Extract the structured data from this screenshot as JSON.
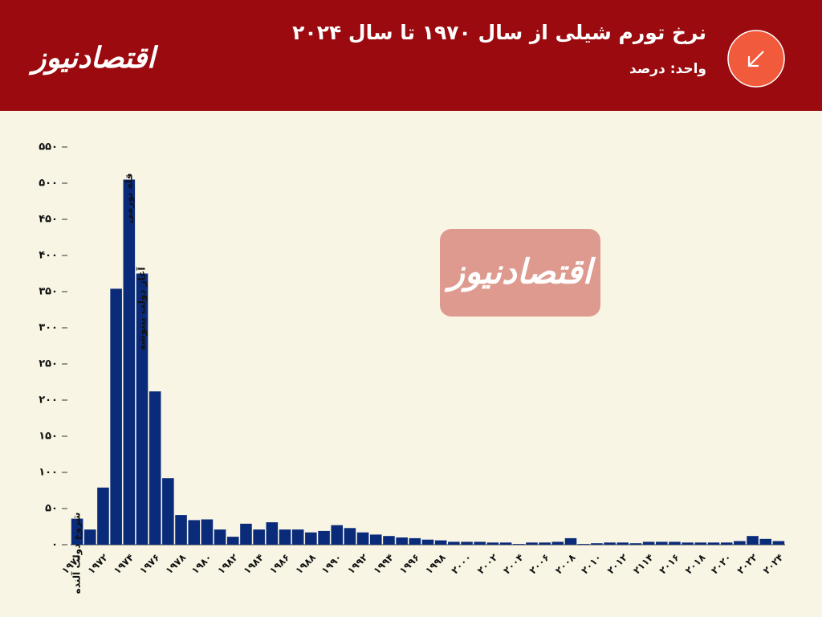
{
  "brand": "اقتصادنیوز",
  "chart_data": {
    "type": "bar",
    "title": "نرخ تورم شیلی از سال ۱۹۷۰ تا سال ۲۰۲۴",
    "subtitle": "واحد: درصد",
    "color": "#0a2a7a",
    "categories": [
      "۱۹۷۰",
      null,
      "۱۹۷۲",
      null,
      "۱۹۷۴",
      null,
      "۱۹۷۶",
      null,
      "۱۹۷۸",
      null,
      "۱۹۸۰",
      null,
      "۱۹۸۲",
      null,
      "۱۹۸۴",
      null,
      "۱۹۸۶",
      null,
      "۱۹۸۸",
      null,
      "۱۹۹۰",
      null,
      "۱۹۹۲",
      null,
      "۱۹۹۴",
      null,
      "۱۹۹۶",
      null,
      "۱۹۹۸",
      null,
      "۲۰۰۰",
      null,
      "۲۰۰۲",
      null,
      "۲۰۰۴",
      null,
      "۲۰۰۶",
      null,
      "۲۰۰۸",
      null,
      "۲۰۱۰",
      null,
      "۲۰۱۲",
      null,
      "۲۱۱۴",
      null,
      "۲۰۱۶",
      null,
      "۲۰۱۸",
      null,
      "۲۰۲۰",
      null,
      "۲۰۲۲",
      null,
      "۲۰۲۴"
    ],
    "values": [
      36,
      21,
      79,
      354,
      505,
      375,
      212,
      92,
      41,
      34,
      35,
      21,
      11,
      29,
      21,
      31,
      21,
      21,
      17,
      19,
      27,
      23,
      17,
      14,
      12,
      10,
      9,
      7,
      6,
      4,
      4,
      4,
      3,
      3,
      1,
      3,
      3,
      4,
      9,
      1,
      2,
      3,
      3,
      2,
      4,
      4,
      4,
      3,
      3,
      3,
      3,
      5,
      12,
      8,
      5
    ],
    "ylim": [
      0,
      550
    ],
    "yticks": [
      {
        "value": 0,
        "label": "۰"
      },
      {
        "value": 50,
        "label": "۵۰"
      },
      {
        "value": 100,
        "label": "۱۰۰"
      },
      {
        "value": 150,
        "label": "۱۵۰"
      },
      {
        "value": 200,
        "label": "۲۰۰"
      },
      {
        "value": 250,
        "label": "۲۵۰"
      },
      {
        "value": 300,
        "label": "۳۰۰"
      },
      {
        "value": 350,
        "label": "۳۵۰"
      },
      {
        "value": 400,
        "label": "۴۰۰"
      },
      {
        "value": 450,
        "label": "۴۵۰"
      },
      {
        "value": 500,
        "label": "۵۰۰"
      },
      {
        "value": 550,
        "label": "۵۵۰"
      }
    ],
    "annotations": [
      "شروع دولت آلنده",
      "قله تورمی",
      "آغاز دولت پینوشه"
    ]
  }
}
